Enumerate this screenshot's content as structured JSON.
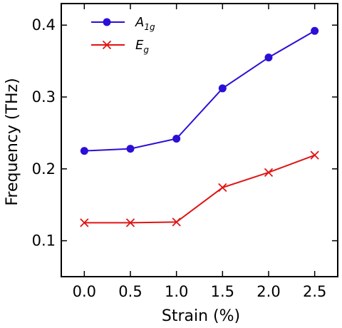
{
  "chart_data": {
    "type": "line",
    "xlabel": "Strain (%)",
    "ylabel": "Frequency (THz)",
    "xlim": [
      -0.25,
      2.75
    ],
    "ylim": [
      0.05,
      0.43
    ],
    "x_ticks": [
      "0.0",
      "0.5",
      "1.0",
      "1.5",
      "2.0",
      "2.5"
    ],
    "y_ticks": [
      "0.1",
      "0.2",
      "0.3",
      "0.4"
    ],
    "x": [
      0.0,
      0.5,
      1.0,
      1.5,
      2.0,
      2.5
    ],
    "grid": false,
    "legend_position": "top-left",
    "series": [
      {
        "name": "A1g",
        "name_main": "A",
        "name_sub": "1g",
        "color": "#2a0fd6",
        "marker": "circle",
        "values": [
          0.225,
          0.228,
          0.242,
          0.312,
          0.355,
          0.392
        ]
      },
      {
        "name": "Eg",
        "name_main": "E",
        "name_sub": "g",
        "color": "#e01414",
        "marker": "x",
        "values": [
          0.125,
          0.125,
          0.126,
          0.174,
          0.195,
          0.219
        ]
      }
    ]
  }
}
